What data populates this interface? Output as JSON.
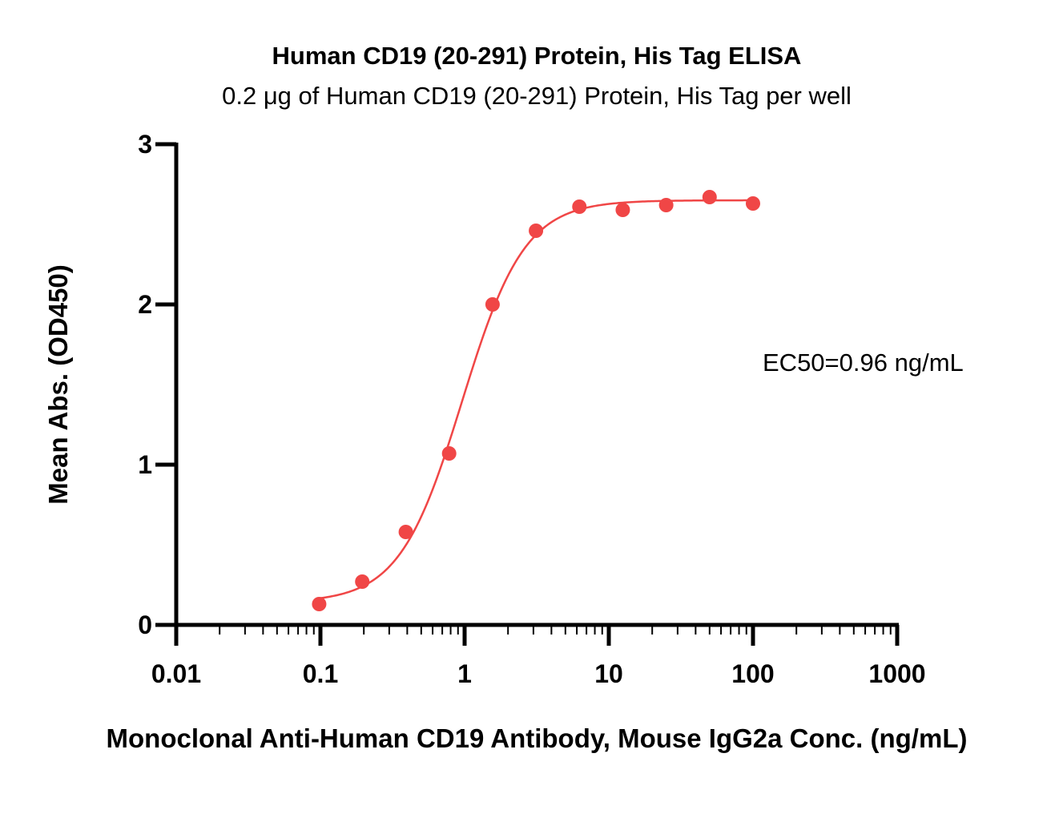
{
  "chart_data": {
    "type": "scatter",
    "title": "Human CD19 (20-291) Protein, His Tag ELISA",
    "subtitle": "0.2 μg of Human CD19 (20-291) Protein, His Tag per well",
    "xlabel": "Monoclonal Anti-Human CD19 Antibody, Mouse IgG2a Conc. (ng/mL)",
    "ylabel": "Mean Abs. (OD450)",
    "x_scale": "log",
    "xlim": [
      0.01,
      1000
    ],
    "ylim": [
      0,
      3
    ],
    "x_ticks": [
      "0.01",
      "0.1",
      "1",
      "10",
      "100",
      "1000"
    ],
    "y_ticks": [
      "0",
      "1",
      "2",
      "3"
    ],
    "grid": false,
    "color": "#f04646",
    "annotation": "EC50=0.96 ng/mL",
    "series": [
      {
        "x": [
          0.098,
          0.195,
          0.391,
          0.781,
          1.5625,
          3.125,
          6.25,
          12.5,
          25,
          50,
          100
        ],
        "y": [
          0.13,
          0.27,
          0.58,
          1.07,
          2.0,
          2.46,
          2.61,
          2.59,
          2.62,
          2.67,
          2.63
        ]
      }
    ],
    "fit": {
      "model": "4PL",
      "bottom": 0.14,
      "top": 2.65,
      "ec50": 0.96,
      "hill": 2.0,
      "x_range": [
        0.098,
        100
      ]
    }
  }
}
